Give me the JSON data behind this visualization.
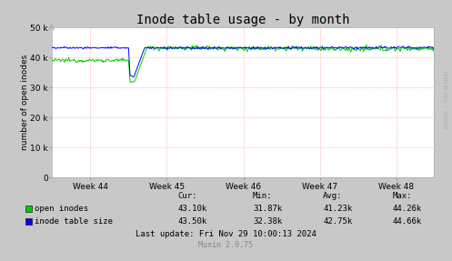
{
  "title": "Inode table usage - by month",
  "ylabel": "number of open inodes",
  "background_color": "#c8c8c8",
  "plot_bg_color": "#ffffff",
  "grid_color": "#ff9999",
  "ylim": [
    0,
    50000
  ],
  "yticks": [
    0,
    10000,
    20000,
    30000,
    40000,
    50000
  ],
  "ytick_labels": [
    "0",
    "10 k",
    "20 k",
    "30 k",
    "40 k",
    "50 k"
  ],
  "xtick_labels": [
    "Week 44",
    "Week 45",
    "Week 46",
    "Week 47",
    "Week 48"
  ],
  "line_green_color": "#00cc00",
  "line_blue_color": "#0000ff",
  "legend_entries": [
    "open inodes",
    "inode table size"
  ],
  "stats_header": [
    "Cur:",
    "Min:",
    "Avg:",
    "Max:"
  ],
  "stats_green": [
    "43.10k",
    "31.87k",
    "41.23k",
    "44.26k"
  ],
  "stats_blue": [
    "43.50k",
    "32.38k",
    "42.75k",
    "44.66k"
  ],
  "last_update": "Last update: Fri Nov 29 10:00:13 2024",
  "munin_version": "Munin 2.0.75",
  "watermark": "RRDTOOL / TOBI OETIKER",
  "title_fontsize": 10,
  "axis_label_fontsize": 6.5,
  "tick_fontsize": 6.5,
  "legend_fontsize": 6.5,
  "stats_fontsize": 6.5
}
